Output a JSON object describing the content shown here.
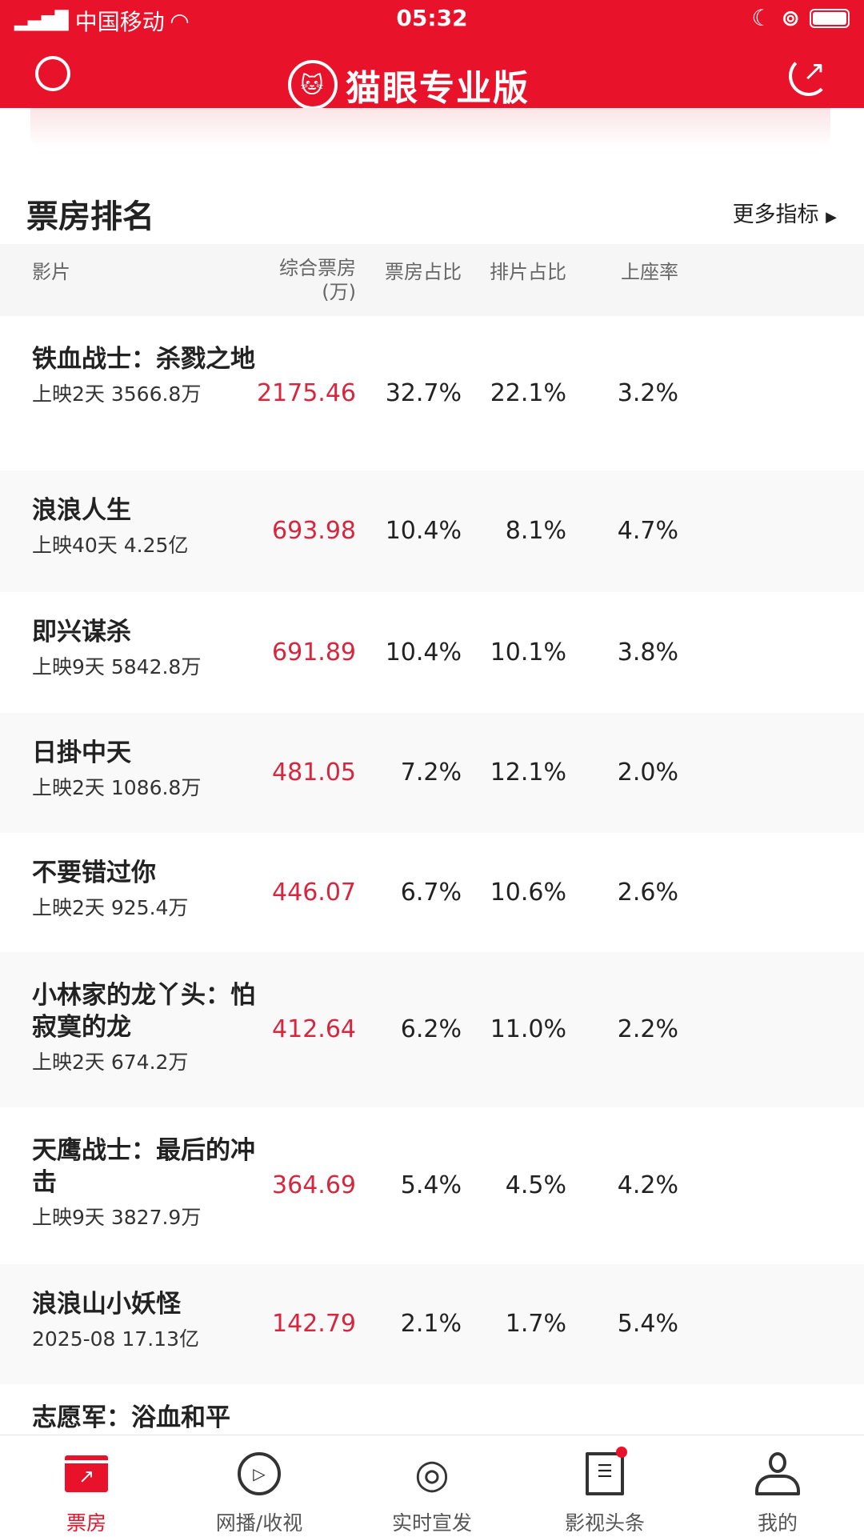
{
  "status_bar": {
    "carrier": "中国移动",
    "time": "05:32"
  },
  "header": {
    "title": "猫眼专业版",
    "accent": "#e8132b"
  },
  "section": {
    "title": "票房排名",
    "more_label": "更多指标"
  },
  "table": {
    "columns": [
      "影片",
      "综合票房\n(万)",
      "票房占比",
      "排片占比",
      "上座率"
    ],
    "col_film": "影片",
    "col_box": "综合票房",
    "col_box_unit": "(万)",
    "col_share": "票房占比",
    "col_screen": "排片占比",
    "col_seat": "上座率",
    "rows": [
      {
        "name": "铁血战士：杀戮之地",
        "sub": "上映2天 3566.8万",
        "box": "2175.46",
        "share": "32.7%",
        "screen": "22.1%",
        "seat": "3.2%"
      },
      {
        "name": "浪浪人生",
        "sub": "上映40天 4.25亿",
        "box": "693.98",
        "share": "10.4%",
        "screen": "8.1%",
        "seat": "4.7%"
      },
      {
        "name": "即兴谋杀",
        "sub": "上映9天 5842.8万",
        "box": "691.89",
        "share": "10.4%",
        "screen": "10.1%",
        "seat": "3.8%"
      },
      {
        "name": "日掛中天",
        "sub": "上映2天 1086.8万",
        "box": "481.05",
        "share": "7.2%",
        "screen": "12.1%",
        "seat": "2.0%"
      },
      {
        "name": "不要错过你",
        "sub": "上映2天 925.4万",
        "box": "446.07",
        "share": "6.7%",
        "screen": "10.6%",
        "seat": "2.6%"
      },
      {
        "name": "小林家的龙丫头：怕寂寞的龙",
        "sub": "上映2天 674.2万",
        "box": "412.64",
        "share": "6.2%",
        "screen": "11.0%",
        "seat": "2.2%"
      },
      {
        "name": "天鹰战士：最后的冲击",
        "sub": "上映9天 3827.9万",
        "box": "364.69",
        "share": "5.4%",
        "screen": "4.5%",
        "seat": "4.2%"
      },
      {
        "name": "浪浪山小妖怪",
        "sub": "2025-08 17.13亿",
        "box": "142.79",
        "share": "2.1%",
        "screen": "1.7%",
        "seat": "5.4%"
      },
      {
        "name": "志愿军：浴血和平",
        "sub": "",
        "box": "",
        "share": "",
        "screen": "",
        "seat": ""
      }
    ]
  },
  "tabbar": {
    "items": [
      {
        "label": "票房",
        "icon": "chart-icon",
        "active": true
      },
      {
        "label": "网播/收视",
        "icon": "play-icon"
      },
      {
        "label": "实时宣发",
        "icon": "broadcast-icon"
      },
      {
        "label": "影视头条",
        "icon": "news-icon",
        "badge": true
      },
      {
        "label": "我的",
        "icon": "user-icon"
      }
    ]
  }
}
